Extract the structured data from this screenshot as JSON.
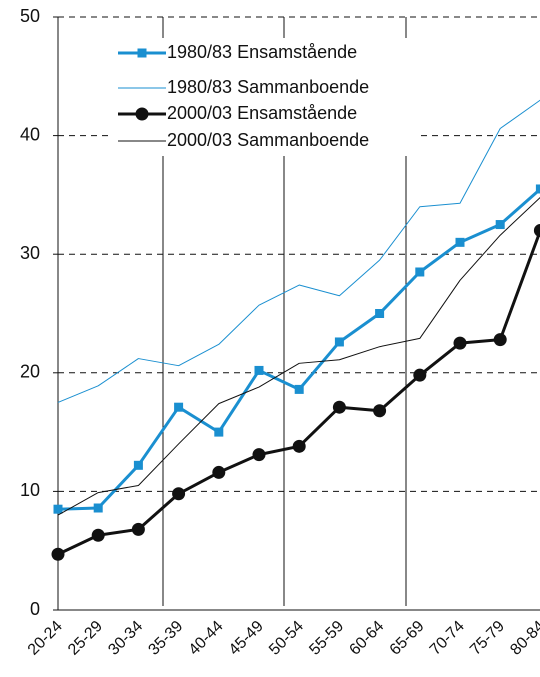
{
  "chart_data": {
    "type": "line",
    "categories": [
      "20-24",
      "25-29",
      "30-34",
      "35-39",
      "40-44",
      "45-49",
      "50-54",
      "55-59",
      "60-64",
      "65-69",
      "70-74",
      "75-79",
      "80-84"
    ],
    "series": [
      {
        "name": "1980/83 Ensamstående",
        "color": "#1a8fd0",
        "width": 3,
        "marker": "square",
        "values": [
          8.5,
          8.6,
          12.2,
          17.1,
          15.0,
          20.2,
          18.6,
          22.6,
          25.0,
          28.5,
          31.0,
          32.5,
          35.5
        ]
      },
      {
        "name": "1980/83 Sammanboende",
        "color": "#1a8fd0",
        "width": 1,
        "marker": null,
        "values": [
          17.5,
          18.9,
          21.2,
          20.6,
          22.4,
          25.7,
          27.4,
          26.5,
          29.5,
          34.0,
          34.3,
          40.6,
          43.0
        ]
      },
      {
        "name": "2000/03 Ensamstående",
        "color": "#111111",
        "width": 3,
        "marker": "circle",
        "values": [
          4.7,
          6.3,
          6.8,
          9.8,
          11.6,
          13.1,
          13.8,
          17.1,
          16.8,
          19.8,
          22.5,
          22.8,
          32.0
        ]
      },
      {
        "name": "2000/03 Sammanboende",
        "color": "#111111",
        "width": 1,
        "marker": null,
        "values": [
          8.0,
          9.9,
          10.5,
          14.0,
          17.4,
          18.8,
          20.8,
          21.1,
          22.2,
          22.9,
          27.8,
          31.6,
          34.8
        ]
      }
    ],
    "ylim": [
      0,
      50
    ],
    "yticks": [
      0,
      10,
      20,
      30,
      40,
      50
    ],
    "grid": true
  }
}
